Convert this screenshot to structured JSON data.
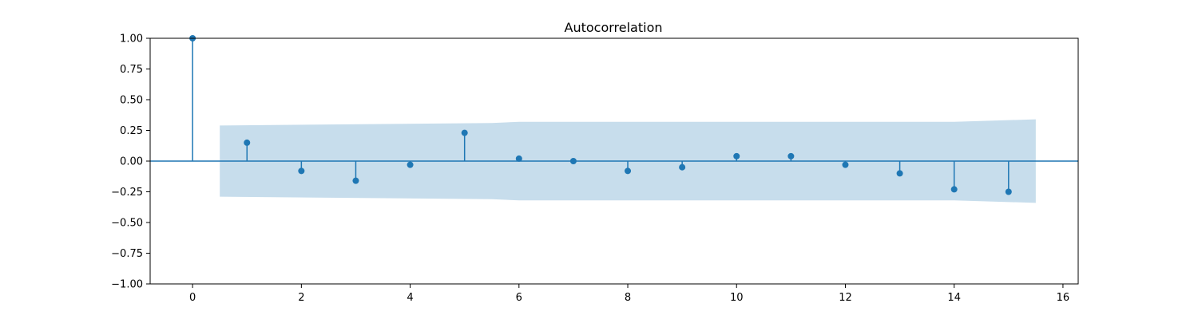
{
  "chart_data": {
    "type": "stem",
    "title": "Autocorrelation",
    "xlabel": "",
    "ylabel": "",
    "xlim": [
      -0.78,
      16.28
    ],
    "ylim": [
      -1.0,
      1.0
    ],
    "xticks": [
      0,
      2,
      4,
      6,
      8,
      10,
      12,
      14,
      16
    ],
    "yticks": [
      -1.0,
      -0.75,
      -0.5,
      -0.25,
      0.0,
      0.25,
      0.5,
      0.75,
      1.0
    ],
    "xtick_labels": [
      "0",
      "2",
      "4",
      "6",
      "8",
      "10",
      "12",
      "14",
      "16"
    ],
    "ytick_labels": [
      "−1.00",
      "−0.75",
      "−0.50",
      "−0.25",
      "0.00",
      "0.25",
      "0.50",
      "0.75",
      "1.00"
    ],
    "grid": false,
    "color": "#1f77b4",
    "band_color": "#1f77b4",
    "series": [
      {
        "lags": [
          0,
          1,
          2,
          3,
          4,
          5,
          6,
          7,
          8,
          9,
          10,
          11,
          12,
          13,
          14,
          15
        ],
        "values": [
          1.0,
          0.15,
          -0.08,
          -0.16,
          -0.03,
          0.23,
          0.02,
          0.0,
          -0.08,
          -0.05,
          0.04,
          0.04,
          -0.03,
          -0.1,
          -0.23,
          -0.25
        ]
      }
    ],
    "confidence_band": {
      "x": [
        0.5,
        5.5,
        6.0,
        14.0,
        15.5
      ],
      "upper": [
        0.29,
        0.31,
        0.32,
        0.32,
        0.34
      ],
      "lower": [
        -0.29,
        -0.31,
        -0.32,
        -0.32,
        -0.34
      ]
    }
  }
}
